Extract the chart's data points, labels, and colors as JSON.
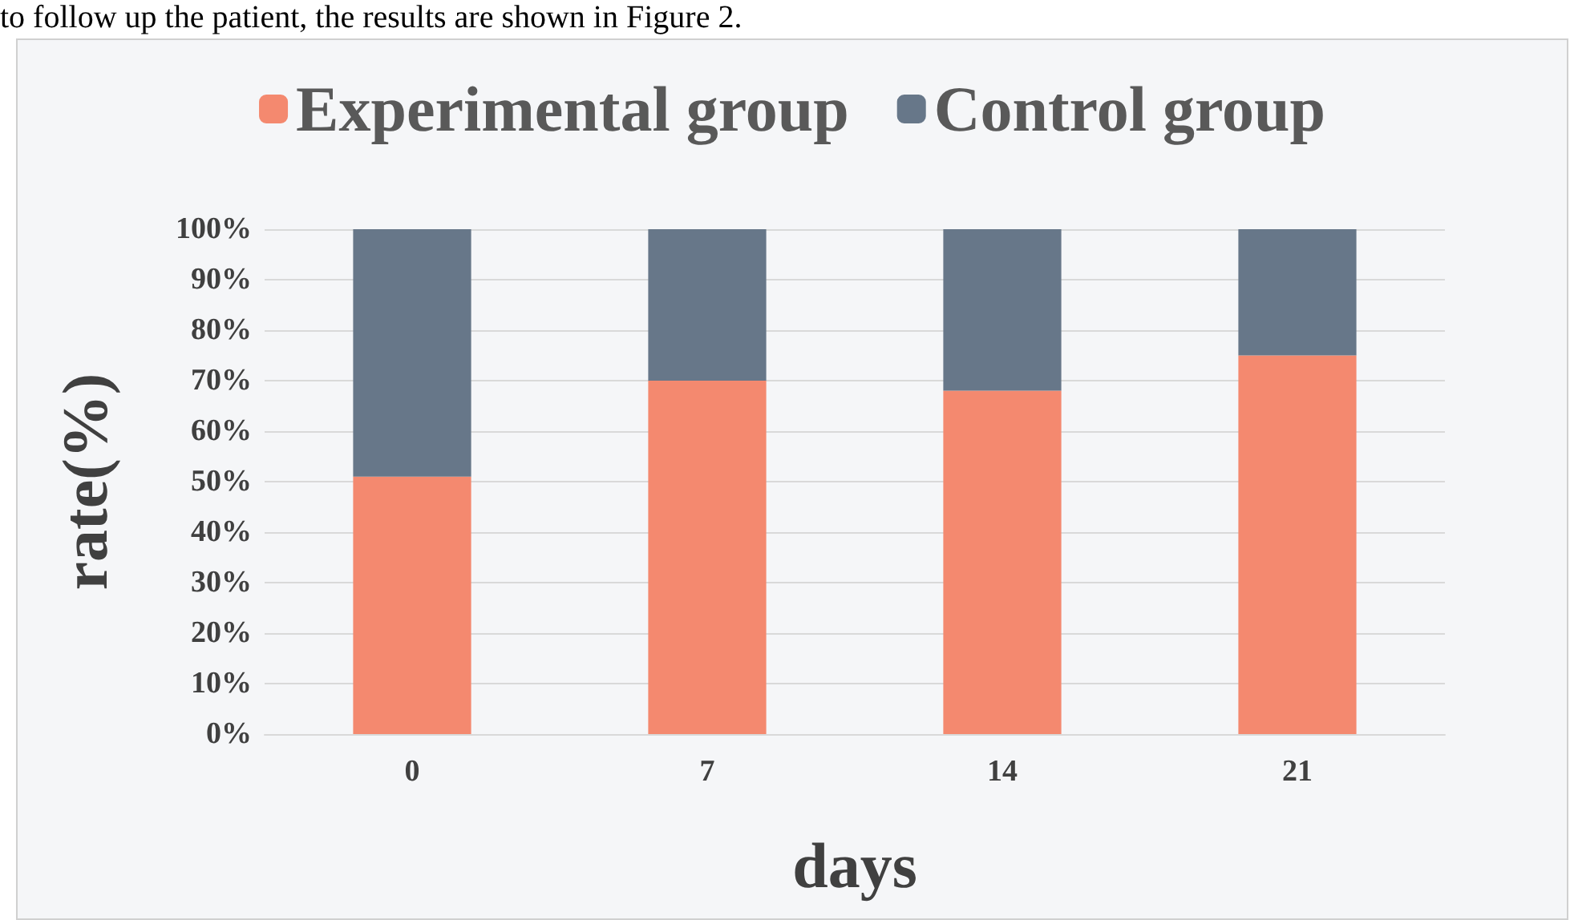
{
  "chart_data": {
    "type": "bar",
    "stacked": true,
    "xlabel": "days",
    "ylabel": "rate(%)",
    "annotations": [
      "to follow up the patient, the results are shown in Figure 2."
    ],
    "categories": [
      "0",
      "7",
      "14",
      "21"
    ],
    "series": [
      {
        "name": "Experimental group",
        "color": "#f4896f",
        "values": [
          51,
          70,
          68,
          75
        ]
      },
      {
        "name": "Control group",
        "color": "#677789",
        "values": [
          49,
          30,
          32,
          25
        ]
      }
    ],
    "ylim": [
      0,
      100
    ],
    "yticks": [
      {
        "value": 0,
        "label": "0%"
      },
      {
        "value": 10,
        "label": "10%"
      },
      {
        "value": 20,
        "label": "20%"
      },
      {
        "value": 30,
        "label": "30%"
      },
      {
        "value": 40,
        "label": "40%"
      },
      {
        "value": 50,
        "label": "50%"
      },
      {
        "value": 60,
        "label": "60%"
      },
      {
        "value": 70,
        "label": "70%"
      },
      {
        "value": 80,
        "label": "80%"
      },
      {
        "value": 90,
        "label": "90%"
      },
      {
        "value": 100,
        "label": "100%"
      }
    ],
    "grid": "y",
    "legend": "top"
  }
}
